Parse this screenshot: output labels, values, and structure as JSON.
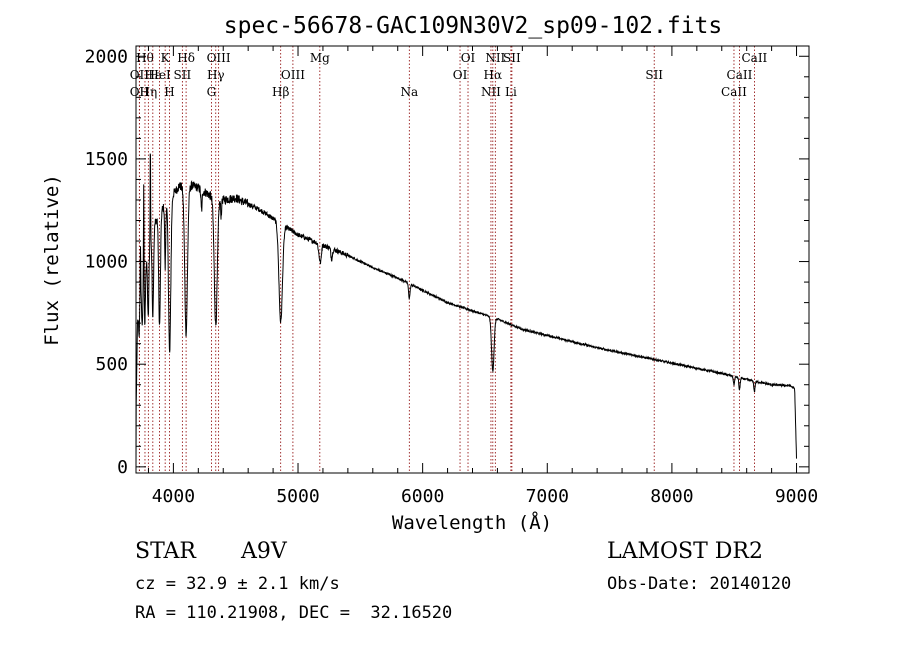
{
  "chart_data": {
    "type": "line",
    "title": "spec-56678-GAC109N30V2_sp09-102.fits",
    "xlabel": "Wavelength (Å)",
    "ylabel": "Flux (relative)",
    "xlim": [
      3700,
      9100
    ],
    "ylim": [
      -30,
      2050
    ],
    "xticks": [
      4000,
      5000,
      6000,
      7000,
      8000,
      9000
    ],
    "xtick_labels": [
      "4000",
      "5000",
      "6000",
      "7000",
      "8000",
      "9000"
    ],
    "yticks": [
      0,
      500,
      1000,
      1500,
      2000
    ],
    "ytick_labels": [
      "0",
      "500",
      "1000",
      "1500",
      "2000"
    ],
    "grid": false,
    "line_color": "#000000",
    "marker_color": "#8b0000",
    "continuum": [
      [
        3700,
        0
      ],
      [
        3702,
        300
      ],
      [
        3712,
        700
      ],
      [
        3730,
        820
      ],
      [
        3760,
        900
      ],
      [
        3800,
        1050
      ],
      [
        3830,
        1150
      ],
      [
        3860,
        1200
      ],
      [
        3900,
        1250
      ],
      [
        3950,
        1280
      ],
      [
        4000,
        1330
      ],
      [
        4050,
        1370
      ],
      [
        4100,
        1350
      ],
      [
        4150,
        1370
      ],
      [
        4200,
        1360
      ],
      [
        4250,
        1340
      ],
      [
        4300,
        1320
      ],
      [
        4400,
        1300
      ],
      [
        4500,
        1310
      ],
      [
        4600,
        1280
      ],
      [
        4700,
        1250
      ],
      [
        4800,
        1210
      ],
      [
        4900,
        1170
      ],
      [
        5000,
        1130
      ],
      [
        5200,
        1080
      ],
      [
        5400,
        1030
      ],
      [
        5600,
        970
      ],
      [
        5800,
        920
      ],
      [
        6000,
        860
      ],
      [
        6200,
        800
      ],
      [
        6400,
        760
      ],
      [
        6600,
        720
      ],
      [
        6800,
        670
      ],
      [
        7000,
        640
      ],
      [
        7200,
        610
      ],
      [
        7400,
        580
      ],
      [
        7600,
        555
      ],
      [
        7800,
        530
      ],
      [
        8000,
        505
      ],
      [
        8200,
        480
      ],
      [
        8400,
        455
      ],
      [
        8600,
        425
      ],
      [
        8800,
        400
      ],
      [
        8950,
        395
      ],
      [
        8985,
        380
      ],
      [
        9000,
        40
      ]
    ],
    "absorption": [
      {
        "x": 3725,
        "depth": 150,
        "width": 4
      },
      {
        "x": 3750,
        "depth": 200,
        "width": 4
      },
      {
        "x": 3771,
        "depth": 250,
        "width": 4
      },
      {
        "x": 3798,
        "depth": 320,
        "width": 5
      },
      {
        "x": 3835,
        "depth": 420,
        "width": 6
      },
      {
        "x": 3889,
        "depth": 550,
        "width": 7
      },
      {
        "x": 3934,
        "depth": 300,
        "width": 4
      },
      {
        "x": 3970,
        "depth": 750,
        "width": 9
      },
      {
        "x": 4102,
        "depth": 700,
        "width": 11
      },
      {
        "x": 4226,
        "depth": 100,
        "width": 5
      },
      {
        "x": 4340,
        "depth": 620,
        "width": 12
      },
      {
        "x": 4383,
        "depth": 80,
        "width": 4
      },
      {
        "x": 4861,
        "depth": 480,
        "width": 14
      },
      {
        "x": 5172,
        "depth": 60,
        "width": 8
      },
      {
        "x": 5183,
        "depth": 60,
        "width": 6
      },
      {
        "x": 5270,
        "depth": 50,
        "width": 6
      },
      {
        "x": 5893,
        "depth": 70,
        "width": 6
      },
      {
        "x": 6563,
        "depth": 260,
        "width": 10
      },
      {
        "x": 8498,
        "depth": 40,
        "width": 5
      },
      {
        "x": 8542,
        "depth": 60,
        "width": 5
      },
      {
        "x": 8662,
        "depth": 50,
        "width": 5
      }
    ],
    "spikes": [
      {
        "x": 3736,
        "height": 250,
        "width": 2
      },
      {
        "x": 3762,
        "height": 500,
        "width": 2
      },
      {
        "x": 3815,
        "height": 480,
        "width": 2
      }
    ],
    "line_markers": [
      {
        "x": 3727,
        "label": "OII",
        "row": 1
      },
      {
        "x": 3727,
        "label": "OII",
        "row": 2
      },
      {
        "x": 3772,
        "label": "Hθ",
        "row": 0
      },
      {
        "x": 3799,
        "label": "Hη",
        "row": 2
      },
      {
        "x": 3835,
        "label": "Hε",
        "row": 1
      },
      {
        "x": 3889,
        "label": "HeI",
        "row": 1
      },
      {
        "x": 3934,
        "label": "K",
        "row": 0
      },
      {
        "x": 3969,
        "label": "H",
        "row": 2
      },
      {
        "x": 4072,
        "label": "SII",
        "row": 1
      },
      {
        "x": 4102,
        "label": "Hδ",
        "row": 0
      },
      {
        "x": 4305,
        "label": "G",
        "row": 2
      },
      {
        "x": 4340,
        "label": "Hγ",
        "row": 1
      },
      {
        "x": 4363,
        "label": "OIII",
        "row": 0
      },
      {
        "x": 4861,
        "label": "Hβ",
        "row": 2
      },
      {
        "x": 4959,
        "label": "OIII",
        "row": 1
      },
      {
        "x": 5175,
        "label": "Mg",
        "row": 0
      },
      {
        "x": 5893,
        "label": "Na",
        "row": 2
      },
      {
        "x": 6300,
        "label": "OI",
        "row": 1
      },
      {
        "x": 6364,
        "label": "OI",
        "row": 0
      },
      {
        "x": 6548,
        "label": "NII",
        "row": 2
      },
      {
        "x": 6563,
        "label": "Hα",
        "row": 1
      },
      {
        "x": 6583,
        "label": "NII",
        "row": 0
      },
      {
        "x": 6708,
        "label": "Li",
        "row": 2
      },
      {
        "x": 6716,
        "label": "SII",
        "row": 0
      },
      {
        "x": 7858,
        "label": "SII",
        "row": 1
      },
      {
        "x": 8498,
        "label": "CaII",
        "row": 2
      },
      {
        "x": 8542,
        "label": "CaII",
        "row": 1
      },
      {
        "x": 8662,
        "label": "CaII",
        "row": 0
      }
    ]
  },
  "info": {
    "class_label": "STAR",
    "subclass": "A9V",
    "survey": "LAMOST DR2",
    "cz": "cz = 32.9 ± 2.1 km/s",
    "obs_date": "Obs-Date: 20140120",
    "coords": "RA = 110.21908, DEC =  32.16520"
  }
}
